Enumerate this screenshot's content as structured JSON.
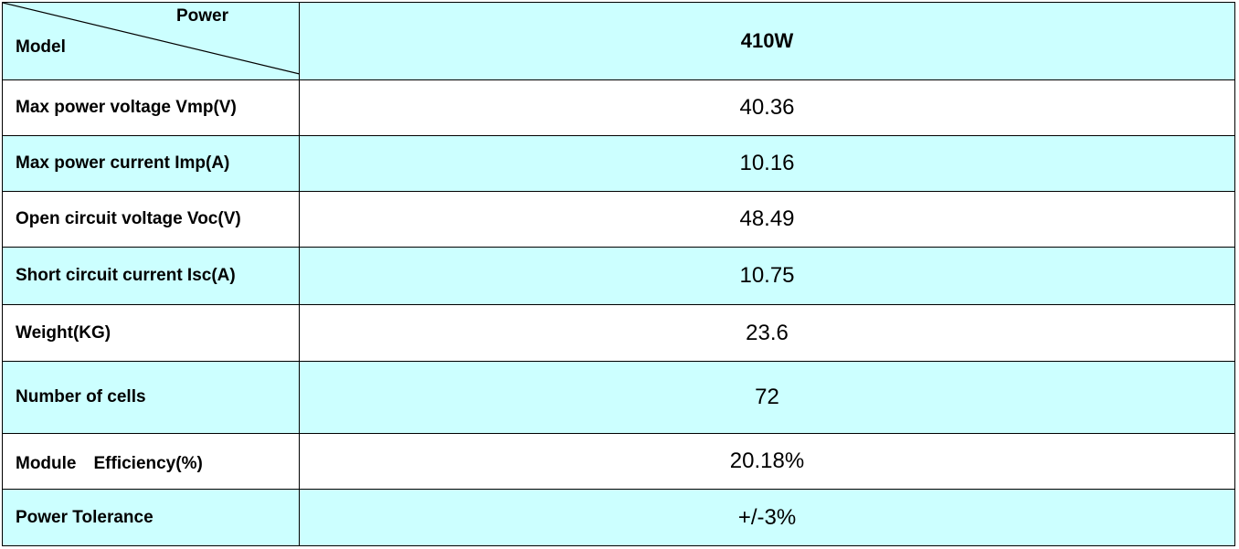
{
  "header": {
    "corner_top": "Power",
    "corner_bottom": "Model",
    "value": "410W"
  },
  "table": {
    "rows": [
      [
        "Max power voltage Vmp(V)",
        "40.36"
      ],
      [
        "Max power current Imp(A)",
        "10.16"
      ],
      [
        "Open circuit voltage Voc(V)",
        "48.49"
      ],
      [
        "Short circuit current Isc(A)",
        "10.75"
      ],
      [
        "Weight(KG)",
        "23.6"
      ],
      [
        "Number of cells",
        "72"
      ],
      [
        "Module　Efficiency(%)",
        "20.18%"
      ],
      [
        "Power Tolerance",
        "+/-3%"
      ]
    ]
  }
}
